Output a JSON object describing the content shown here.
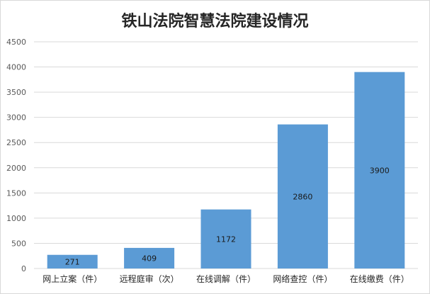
{
  "chart_data": {
    "type": "bar",
    "title": "铁山法院智慧法院建设情况",
    "categories": [
      "网上立案（件）",
      "远程庭审（次）",
      "在线调解（件）",
      "网络查控（件）",
      "在线缴费（件）"
    ],
    "series": [
      {
        "values": [
          271,
          409,
          1172,
          2860,
          3900
        ],
        "data_labels": [
          "271",
          "409",
          "1172",
          "2860",
          "3900"
        ]
      }
    ],
    "xlabel": "",
    "ylabel": "",
    "ylim": [
      0,
      4500
    ],
    "yticks": [
      "0",
      "500",
      "1000",
      "1500",
      "2000",
      "2500",
      "3000",
      "3500",
      "4000",
      "4500"
    ],
    "grid": true,
    "legend": "none",
    "bar_color": "#5b9bd5",
    "grid_color": "#d9d9d9"
  }
}
